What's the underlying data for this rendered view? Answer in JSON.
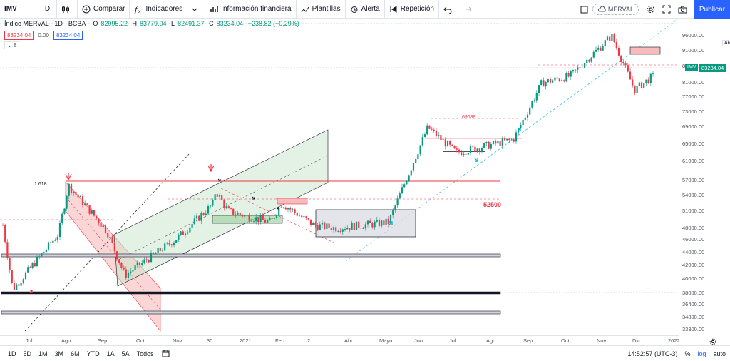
{
  "toolbar": {
    "symbol": "IMV",
    "interval": "D",
    "compare_label": "Comparar",
    "indicators_label": "Indicadores",
    "financials_label": "Información financiera",
    "templates_label": "Plantillas",
    "alert_label": "Alerta",
    "replay_label": "Repetición",
    "merval_label": "MERVAL",
    "publish_label": "Publicar"
  },
  "legend": {
    "title": "Índice MERVAL · 1D · BCBA",
    "ohlc": [
      {
        "label": "O",
        "value": "82995.22"
      },
      {
        "label": "H",
        "value": "83779.04"
      },
      {
        "label": "L",
        "value": "82491.37"
      },
      {
        "label": "C",
        "value": "83234.04"
      }
    ],
    "change": "+238.82 (+0.29%)",
    "bid_price": "83234.04",
    "spread": "0.00",
    "ask_price": "83234.04",
    "collapse_count": "8"
  },
  "price_axis": {
    "currency": "ARS",
    "symbol_tag": "IMV",
    "current_price": "83234.04",
    "ticks": [
      "96000.00",
      "91000.00",
      "86000.00",
      "81000.00",
      "77000.00",
      "73000.00",
      "69000.00",
      "65000.00",
      "61000.00",
      "57000.00",
      "54000.00",
      "51000.00",
      "48000.00",
      "46000.00",
      "44000.00",
      "42000.00",
      "40000.00",
      "38000.00",
      "36400.00",
      "34800.00",
      "33300.00"
    ]
  },
  "time_axis": {
    "labels": [
      "Jul",
      "Ago",
      "Sep",
      "Oct",
      "Nov",
      "30",
      "2021",
      "Feb",
      "2",
      "Abr",
      "Mayo",
      "Jun",
      "Jul",
      "Ago",
      "Sep",
      "Oct",
      "Nov",
      "Dic",
      "2022"
    ]
  },
  "annotations": {
    "fib_label": "1.618",
    "level_52500": "52500",
    "level_69688": ".69688"
  },
  "bottom_bar": {
    "ranges": [
      "1D",
      "5D",
      "1M",
      "3M",
      "6M",
      "YTD",
      "1A",
      "5A",
      "Todos"
    ],
    "clock": "14:52:57 (UTC-3)",
    "percent_label": "%",
    "log_label": "log",
    "auto_label": "auto"
  },
  "colors": {
    "up": "#089981",
    "down": "#f23645",
    "accent": "#2962ff",
    "channel_green": "#c8e6c9",
    "channel_red": "#f8bbbb"
  },
  "chart_data": {
    "type": "candlestick",
    "title": "Índice MERVAL · 1D · BCBA",
    "y_scale": "log",
    "ylim": [
      33300,
      99000
    ],
    "x": [
      "Jul",
      "Ago",
      "Sep",
      "Oct",
      "Nov",
      "30",
      "2021",
      "Feb",
      "2",
      "Abr",
      "Mayo",
      "Jun",
      "Jul",
      "Ago",
      "Sep",
      "Oct",
      "Nov",
      "Dic",
      "2022"
    ],
    "close_path": [
      {
        "x": "Jul",
        "y": 48500
      },
      {
        "x": "Jul",
        "y": 38500
      },
      {
        "x": "Ago",
        "y": 47000
      },
      {
        "x": "Ago",
        "y": 56000
      },
      {
        "x": "Sep",
        "y": 47500
      },
      {
        "x": "Oct",
        "y": 40500
      },
      {
        "x": "Oct",
        "y": 46000
      },
      {
        "x": "Nov",
        "y": 47000
      },
      {
        "x": "Nov",
        "y": 52500
      },
      {
        "x": "30",
        "y": 55000
      },
      {
        "x": "2021",
        "y": 51000
      },
      {
        "x": "Feb",
        "y": 49000
      },
      {
        "x": "Feb",
        "y": 52500
      },
      {
        "x": "2",
        "y": 48500
      },
      {
        "x": "Abr",
        "y": 48000
      },
      {
        "x": "Mayo",
        "y": 49000
      },
      {
        "x": "Jun",
        "y": 69000
      },
      {
        "x": "Jul",
        "y": 63000
      },
      {
        "x": "Ago",
        "y": 66000
      },
      {
        "x": "Sep",
        "y": 81000
      },
      {
        "x": "Oct",
        "y": 83000
      },
      {
        "x": "Nov",
        "y": 96000
      },
      {
        "x": "Dic",
        "y": 79000
      },
      {
        "x": "Dic",
        "y": 83234.04
      }
    ],
    "horizontal_levels": [
      56000,
      52500,
      69688,
      43000,
      38000,
      35200
    ]
  }
}
